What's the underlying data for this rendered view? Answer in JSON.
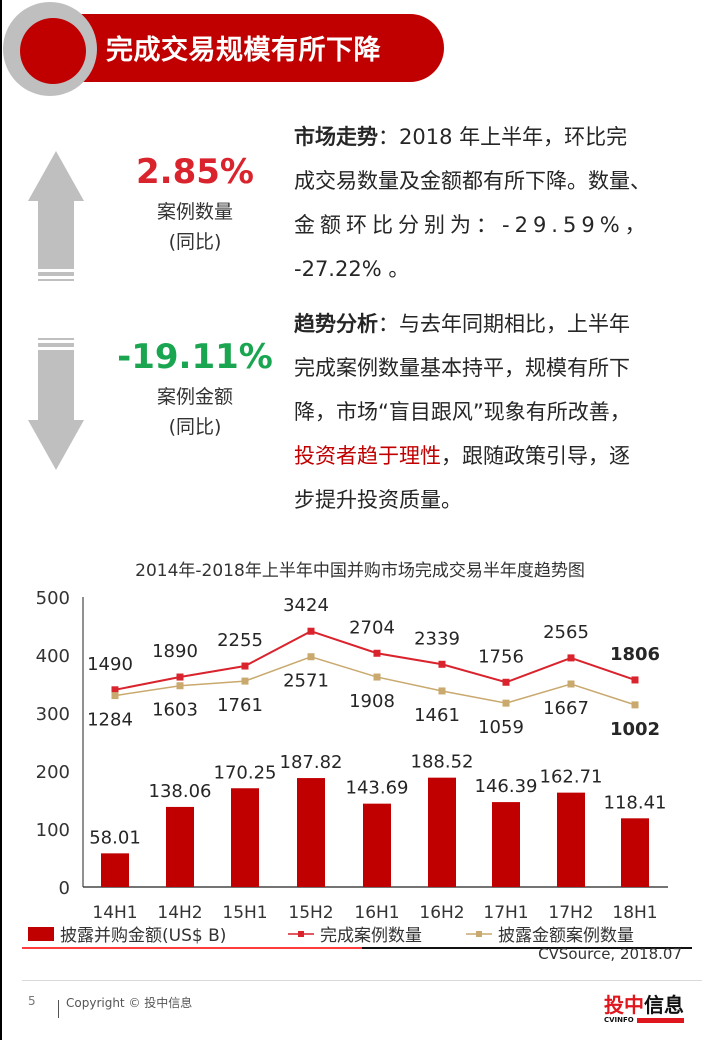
{
  "header": {
    "title": "完成交易规模有所下降"
  },
  "stats": [
    {
      "value": "2.85%",
      "color": "#d9232d",
      "label": "案例数量",
      "sub": "(同比)",
      "direction": "up",
      "icon": "arrow-up-icon"
    },
    {
      "value": "-19.11%",
      "color": "#1aa650",
      "label": "案例金额",
      "sub": "(同比)",
      "direction": "down",
      "icon": "arrow-down-icon"
    }
  ],
  "market_trend": {
    "heading": "市场走势",
    "colon": "：",
    "line1": "2018 年上半年，环比完",
    "line2": "成交易数量及金额都有所下降。数量、",
    "line3": "金额环比分别为：-29.59%，",
    "line4": "-27.22%  。"
  },
  "trend_analysis": {
    "heading": "趋势分析",
    "colon": "：",
    "line1": "与去年同期相比，上半年",
    "line2": "完成案例数量基本持平，规模有所下",
    "line3": "降，市场“盲目跟风”现象有所改善，",
    "highlight": "投资者趋于理性",
    "line4_rest": "，跟随政策引导，逐",
    "line5": "步提升投资质量。"
  },
  "chart_data": {
    "type": "bar",
    "title": "2014年-2018年上半年中国并购市场完成交易半年度趋势图",
    "xlabel": "",
    "ylabel": "",
    "ylim": [
      0,
      500
    ],
    "yticks": [
      "0",
      "100",
      "200",
      "300",
      "400",
      "500"
    ],
    "grid": false,
    "legend_position": "bottom",
    "categories": [
      "14H1",
      "14H2",
      "15H1",
      "15H2",
      "16H1",
      "16H2",
      "17H1",
      "17H2",
      "18H1"
    ],
    "series": [
      {
        "name": "披露并购金额(US$ B)",
        "type": "bar",
        "color": "#c00000",
        "values": [
          58.01,
          138.06,
          170.25,
          187.82,
          143.69,
          188.52,
          146.39,
          162.71,
          118.41
        ],
        "labels": [
          "58.01",
          "138.06",
          "170.25",
          "187.82",
          "143.69",
          "188.52",
          "146.39",
          "162.71",
          "118.41"
        ]
      },
      {
        "name": "完成案例数量",
        "type": "line",
        "color": "#d9232d",
        "values": [
          1490,
          1890,
          2255,
          3424,
          2704,
          2339,
          1756,
          2565,
          1806
        ],
        "labels": [
          "1490",
          "1890",
          "2255",
          "3424",
          "2704",
          "2339",
          "1756",
          "2565",
          "1806"
        ],
        "plot_y": [
          340,
          362,
          381,
          441,
          403,
          384,
          353,
          395,
          357
        ],
        "label_dy": [
          -18,
          -18,
          -18,
          -18,
          -18,
          -18,
          -18,
          -18,
          -18
        ],
        "bold_last": true
      },
      {
        "name": "披露金额案例数量",
        "type": "line",
        "color": "#c9a96e",
        "values": [
          1284,
          1603,
          1761,
          2571,
          1908,
          1461,
          1059,
          1667,
          1002
        ],
        "labels": [
          "1284",
          "1603",
          "1761",
          "2571",
          "1908",
          "1461",
          "1059",
          "1667",
          "1002"
        ],
        "plot_y": [
          330,
          347,
          355,
          397,
          362,
          338,
          317,
          350,
          314
        ],
        "label_dy": [
          30,
          30,
          30,
          30,
          30,
          30,
          30,
          30,
          30
        ],
        "bold_last": true
      }
    ],
    "source": "CVSource, 2018.07"
  },
  "footer": {
    "page_number": "5",
    "copyright": "Copyright © 投中信息",
    "logo_cn_red": "投中",
    "logo_cn_black": "信息",
    "logo_en": "CVINFO"
  }
}
